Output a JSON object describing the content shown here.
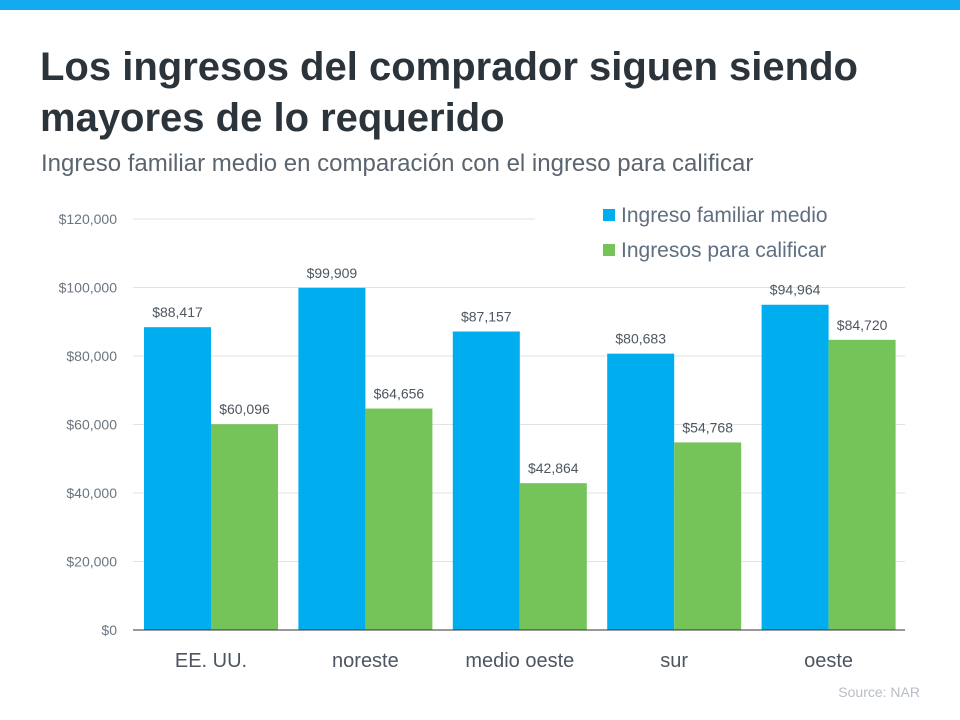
{
  "title": "Los ingresos del comprador siguen siendo mayores de lo requerido",
  "subtitle": "Ingreso familiar medio en comparación con el ingreso para calificar",
  "source": "Source: NAR",
  "colors": {
    "accent_bar": "#13a9ee",
    "series1": "#00aeef",
    "series2": "#74c45a"
  },
  "chart_data": {
    "type": "bar",
    "categories": [
      "EE. UU.",
      "noreste",
      "medio oeste",
      "sur",
      "oeste"
    ],
    "series": [
      {
        "name": "Ingreso familiar medio",
        "values": [
          88417,
          99909,
          87157,
          80683,
          94964
        ],
        "labels": [
          "$88,417",
          "$99,909",
          "$87,157",
          "$80,683",
          "$94,964"
        ]
      },
      {
        "name": "Ingresos para calificar",
        "values": [
          60096,
          64656,
          42864,
          54768,
          84720
        ],
        "labels": [
          "$60,096",
          "$64,656",
          "$42,864",
          "$54,768",
          "$84,720"
        ]
      }
    ],
    "ylim": [
      0,
      120000
    ],
    "yticks": [
      0,
      20000,
      40000,
      60000,
      80000,
      100000,
      120000
    ],
    "ytick_labels": [
      "$0",
      "$20,000",
      "$40,000",
      "$60,000",
      "$80,000",
      "$100,000",
      "$120,000"
    ],
    "grid": true,
    "legend": "top-right"
  }
}
